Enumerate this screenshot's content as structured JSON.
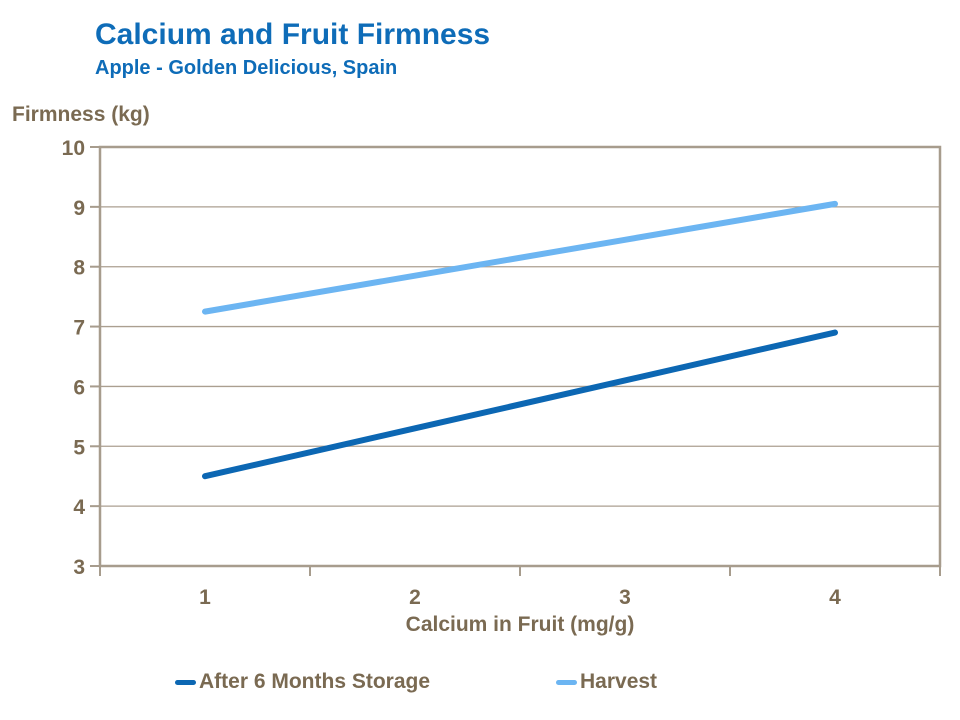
{
  "chart_data": {
    "type": "line",
    "title": "Calcium and Fruit Firmness",
    "subtitle": "Apple - Golden Delicious, Spain",
    "xlabel": "Calcium in Fruit (mg/g)",
    "ylabel": "Firmness (kg)",
    "x": [
      1,
      2,
      3,
      4
    ],
    "xticks": [
      1,
      2,
      3,
      4
    ],
    "yticks": [
      3,
      4,
      5,
      6,
      7,
      8,
      9,
      10
    ],
    "ylim": [
      3,
      10
    ],
    "grid": "horizontal",
    "legend_position": "bottom",
    "series": [
      {
        "name": "After 6 Months Storage",
        "values": [
          4.5,
          5.3,
          6.1,
          6.9
        ],
        "color": "#0c67b3"
      },
      {
        "name": "Harvest",
        "values": [
          7.25,
          7.85,
          8.45,
          9.05
        ],
        "color": "#6cb5f2"
      }
    ]
  },
  "colors": {
    "title_blue": "#0e6cb8",
    "text_taupe": "#7a6a52",
    "axis_line": "#a79c8d",
    "gridline": "#ab9f90",
    "bg": "#ffffff"
  }
}
